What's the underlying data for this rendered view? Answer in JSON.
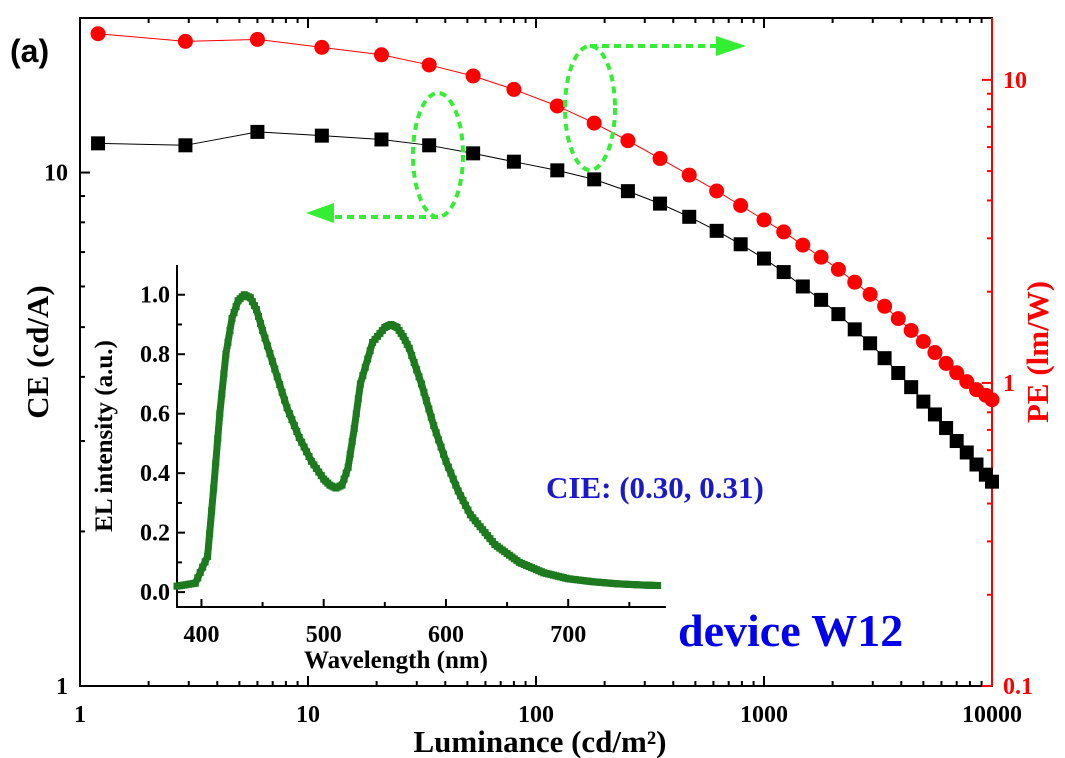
{
  "panel_label": "(a)",
  "device_label": "device W12",
  "cie_label": "CIE: (0.30, 0.31)",
  "colors": {
    "ce": "#000000",
    "pe": "#ff0000",
    "el": "#1e7a1e",
    "arrow": "#33ee33",
    "device": "#0000ee",
    "cie": "#1a1acc"
  },
  "chart_data": [
    {
      "type": "scatter",
      "xlabel": "Luminance (cd/m²)",
      "xscale": "log",
      "xlim": [
        1,
        10000
      ],
      "xticks": [
        "1",
        "10",
        "100",
        "1000",
        "10000"
      ],
      "ylabel_left": "CE (cd/A)",
      "ylim_left": [
        1,
        20
      ],
      "yticks_left": [
        "1",
        "10"
      ],
      "ylabel_right": "PE (lm/W)",
      "ylim_right": [
        0.1,
        16
      ],
      "yticks_right": [
        "0.1",
        "1",
        "10"
      ],
      "series": [
        {
          "axis": "left",
          "marker": "square",
          "x": [
            1.2,
            2.9,
            6.0,
            11.5,
            21,
            34,
            53,
            80,
            124,
            180,
            253,
            350,
            470,
            620,
            790,
            1000,
            1220,
            1480,
            1780,
            2120,
            2500,
            2920,
            3380,
            3880,
            4420,
            5000,
            5620,
            6290,
            7000,
            7750,
            8550,
            9400,
            10000
          ],
          "y": [
            11.4,
            11.3,
            12.0,
            11.8,
            11.6,
            11.3,
            10.9,
            10.5,
            10.1,
            9.7,
            9.2,
            8.7,
            8.2,
            7.7,
            7.25,
            6.8,
            6.4,
            6.0,
            5.65,
            5.3,
            4.95,
            4.65,
            4.35,
            4.07,
            3.82,
            3.58,
            3.38,
            3.18,
            3.0,
            2.85,
            2.7,
            2.58,
            2.5
          ]
        },
        {
          "axis": "right",
          "marker": "circle",
          "x": [
            1.2,
            2.9,
            6.0,
            11.5,
            21,
            34,
            53,
            80,
            124,
            180,
            253,
            350,
            470,
            620,
            790,
            1000,
            1220,
            1480,
            1780,
            2120,
            2500,
            2920,
            3380,
            3880,
            4420,
            5000,
            5620,
            6290,
            7000,
            7750,
            8550,
            9400,
            10000
          ],
          "y": [
            14.2,
            13.4,
            13.6,
            12.8,
            12.1,
            11.2,
            10.3,
            9.3,
            8.2,
            7.2,
            6.3,
            5.5,
            4.85,
            4.3,
            3.85,
            3.45,
            3.15,
            2.85,
            2.6,
            2.37,
            2.15,
            1.96,
            1.79,
            1.63,
            1.49,
            1.37,
            1.26,
            1.16,
            1.08,
            1.01,
            0.95,
            0.91,
            0.88
          ]
        }
      ]
    },
    {
      "type": "line",
      "xlabel": "Wavelength (nm)",
      "ylabel": "EL intensity (a.u.)",
      "xlim": [
        380,
        780
      ],
      "ylim": [
        -0.05,
        1.1
      ],
      "xticks": [
        "400",
        "500",
        "600",
        "700"
      ],
      "yticks": [
        "0.0",
        "0.2",
        "0.4",
        "0.6",
        "0.8",
        "1.0"
      ],
      "series": [
        {
          "x": [
            380,
            395,
            405,
            410,
            415,
            420,
            425,
            430,
            435,
            440,
            445,
            450,
            460,
            470,
            480,
            490,
            500,
            505,
            510,
            515,
            520,
            525,
            530,
            540,
            550,
            555,
            560,
            565,
            570,
            580,
            590,
            600,
            610,
            620,
            640,
            660,
            680,
            700,
            720,
            740,
            760,
            775
          ],
          "y": [
            0.02,
            0.03,
            0.12,
            0.35,
            0.6,
            0.8,
            0.92,
            0.98,
            1.0,
            0.99,
            0.95,
            0.88,
            0.75,
            0.62,
            0.52,
            0.44,
            0.38,
            0.36,
            0.35,
            0.36,
            0.42,
            0.55,
            0.7,
            0.84,
            0.89,
            0.9,
            0.89,
            0.86,
            0.82,
            0.7,
            0.56,
            0.44,
            0.34,
            0.26,
            0.16,
            0.1,
            0.065,
            0.045,
            0.035,
            0.028,
            0.024,
            0.022
          ]
        }
      ]
    }
  ]
}
